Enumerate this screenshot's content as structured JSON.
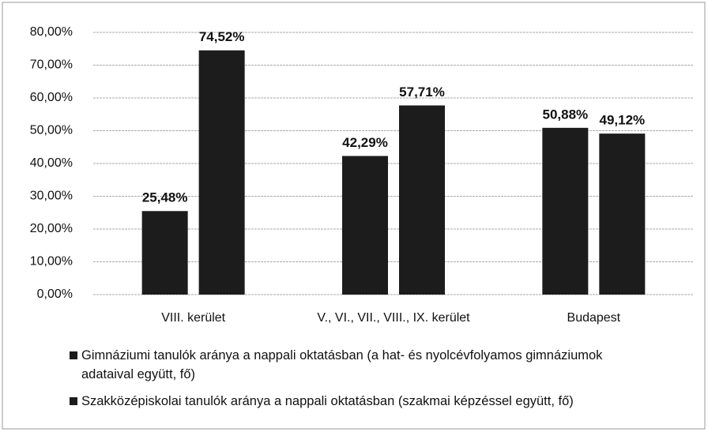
{
  "chart_data": {
    "type": "bar",
    "categories": [
      "VIII. kerület",
      "V., VI., VII., VIII., IX. kerület",
      "Budapest"
    ],
    "series": [
      {
        "name": "Gimnáziumi tanulók aránya a nappali oktatásban (a hat- és nyolcévfolyamos gimnáziumok adataival együtt, fő)",
        "color": "#1c1c1c",
        "values": [
          25.48,
          42.29,
          50.88
        ],
        "value_labels": [
          "25,48%",
          "42,29%",
          "50,88%"
        ]
      },
      {
        "name": "Szakközépiskolai tanulók aránya a nappali oktatásban (szakmai képzéssel együtt, fő)",
        "color": "#1c1c1c",
        "values": [
          74.52,
          57.71,
          49.12
        ],
        "value_labels": [
          "74,52%",
          "57,71%",
          "49,12%"
        ]
      }
    ],
    "ylim": [
      0,
      80
    ],
    "yticks": [
      {
        "value": 0,
        "label": "0,00%"
      },
      {
        "value": 10,
        "label": "10,00%"
      },
      {
        "value": 20,
        "label": "20,00%"
      },
      {
        "value": 30,
        "label": "30,00%"
      },
      {
        "value": 40,
        "label": "40,00%"
      },
      {
        "value": 50,
        "label": "50,00%"
      },
      {
        "value": 60,
        "label": "60,00%"
      },
      {
        "value": 70,
        "label": "70,00%"
      },
      {
        "value": 80,
        "label": "80,00%"
      }
    ],
    "grid": true
  }
}
